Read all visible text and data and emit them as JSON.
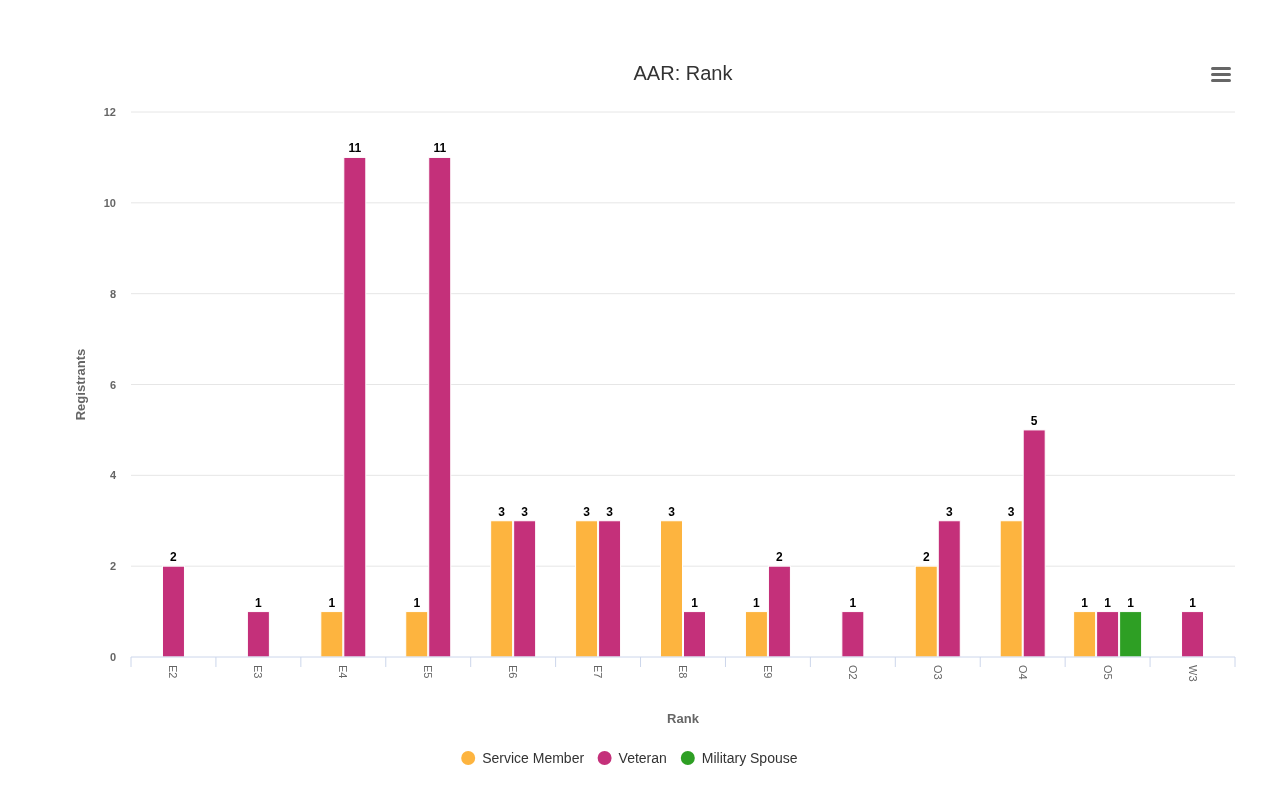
{
  "chart_data": {
    "type": "bar",
    "title": "AAR: Rank",
    "xlabel": "Rank",
    "ylabel": "Registrants",
    "categories": [
      "E2",
      "E3",
      "E4",
      "E5",
      "E6",
      "E7",
      "E8",
      "E9",
      "O2",
      "O3",
      "O4",
      "O5",
      "W3"
    ],
    "series": [
      {
        "name": "Service Member",
        "color": "#fdb43f",
        "values": [
          null,
          null,
          1,
          1,
          3,
          3,
          3,
          1,
          null,
          2,
          3,
          1,
          null
        ]
      },
      {
        "name": "Veteran",
        "color": "#c4307a",
        "values": [
          2,
          1,
          11,
          11,
          3,
          3,
          1,
          2,
          1,
          3,
          5,
          1,
          1
        ]
      },
      {
        "name": "Military Spouse",
        "color": "#2e9f24",
        "values": [
          null,
          null,
          null,
          null,
          null,
          null,
          null,
          null,
          null,
          null,
          null,
          1,
          null
        ]
      }
    ],
    "ylim": [
      0,
      12
    ],
    "yticks": [
      0,
      2,
      4,
      6,
      8,
      10,
      12
    ],
    "grid": "y",
    "legend": "bottom",
    "data_labels": true
  }
}
